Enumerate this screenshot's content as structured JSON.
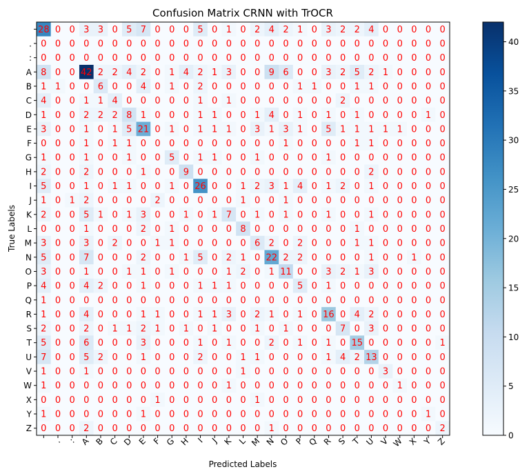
{
  "chart_data": {
    "type": "heatmap",
    "title": "Confusion Matrix CRNN with TrOCR",
    "xlabel": "Predicted Labels",
    "ylabel": "True Labels",
    "x_categories": [
      "",
      ".",
      ":",
      "A",
      "B",
      "C",
      "D",
      "E",
      "F",
      "G",
      "H",
      "I",
      "J",
      "K",
      "L",
      "M",
      "N",
      "O",
      "P",
      "Q",
      "R",
      "S",
      "T",
      "U",
      "V",
      "W",
      "X",
      "Y",
      "Z"
    ],
    "y_categories": [
      "",
      ".",
      ":",
      "A",
      "B",
      "C",
      "D",
      "E",
      "F",
      "G",
      "H",
      "I",
      "J",
      "K",
      "L",
      "M",
      "N",
      "O",
      "P",
      "Q",
      "R",
      "S",
      "T",
      "U",
      "V",
      "W",
      "X",
      "Y",
      "Z"
    ],
    "values": [
      [
        28,
        0,
        0,
        3,
        3,
        0,
        5,
        7,
        0,
        0,
        0,
        5,
        0,
        1,
        0,
        2,
        4,
        2,
        1,
        0,
        3,
        2,
        2,
        4,
        0,
        0,
        0,
        0,
        0
      ],
      [
        0,
        0,
        0,
        0,
        0,
        0,
        0,
        0,
        0,
        0,
        0,
        0,
        0,
        0,
        0,
        0,
        0,
        0,
        0,
        0,
        0,
        0,
        0,
        0,
        0,
        0,
        0,
        0,
        0
      ],
      [
        0,
        0,
        0,
        0,
        0,
        0,
        0,
        0,
        0,
        0,
        0,
        0,
        0,
        0,
        0,
        0,
        0,
        0,
        0,
        0,
        0,
        0,
        0,
        0,
        0,
        0,
        0,
        0,
        0
      ],
      [
        8,
        0,
        0,
        42,
        2,
        2,
        4,
        2,
        0,
        1,
        4,
        2,
        1,
        3,
        0,
        0,
        9,
        6,
        0,
        0,
        3,
        2,
        5,
        2,
        1,
        0,
        0,
        0,
        0
      ],
      [
        1,
        1,
        0,
        0,
        6,
        0,
        0,
        4,
        0,
        1,
        0,
        2,
        0,
        0,
        0,
        0,
        0,
        0,
        1,
        1,
        0,
        0,
        1,
        1,
        0,
        0,
        0,
        0,
        0
      ],
      [
        4,
        0,
        0,
        1,
        1,
        4,
        0,
        0,
        0,
        0,
        0,
        1,
        0,
        1,
        0,
        0,
        0,
        0,
        0,
        0,
        0,
        2,
        0,
        0,
        0,
        0,
        0,
        0,
        0
      ],
      [
        1,
        0,
        0,
        2,
        2,
        2,
        8,
        1,
        0,
        0,
        0,
        1,
        1,
        0,
        0,
        1,
        4,
        0,
        1,
        0,
        1,
        0,
        1,
        0,
        0,
        0,
        0,
        1,
        0
      ],
      [
        3,
        0,
        0,
        1,
        0,
        1,
        5,
        21,
        0,
        1,
        0,
        1,
        1,
        1,
        0,
        3,
        1,
        3,
        1,
        0,
        5,
        1,
        1,
        1,
        1,
        1,
        0,
        0,
        0
      ],
      [
        0,
        0,
        0,
        1,
        0,
        1,
        1,
        0,
        0,
        0,
        0,
        0,
        0,
        0,
        0,
        0,
        0,
        1,
        0,
        0,
        0,
        0,
        1,
        1,
        0,
        0,
        0,
        0,
        0
      ],
      [
        1,
        0,
        0,
        1,
        0,
        0,
        1,
        0,
        0,
        5,
        0,
        1,
        1,
        0,
        0,
        1,
        0,
        0,
        0,
        0,
        1,
        0,
        0,
        0,
        0,
        0,
        0,
        0,
        0
      ],
      [
        2,
        0,
        0,
        2,
        0,
        0,
        0,
        1,
        0,
        0,
        9,
        0,
        0,
        0,
        0,
        0,
        0,
        0,
        0,
        0,
        0,
        0,
        0,
        2,
        0,
        0,
        0,
        0,
        0
      ],
      [
        5,
        0,
        0,
        1,
        0,
        1,
        1,
        0,
        0,
        1,
        0,
        26,
        0,
        0,
        1,
        2,
        3,
        1,
        4,
        0,
        1,
        2,
        0,
        1,
        0,
        0,
        0,
        0,
        0
      ],
      [
        1,
        0,
        1,
        2,
        0,
        0,
        0,
        0,
        2,
        0,
        0,
        0,
        0,
        0,
        1,
        0,
        0,
        1,
        0,
        0,
        0,
        0,
        0,
        0,
        0,
        0,
        0,
        0,
        0
      ],
      [
        2,
        0,
        0,
        5,
        1,
        0,
        1,
        3,
        0,
        0,
        1,
        0,
        1,
        7,
        0,
        1,
        0,
        1,
        0,
        0,
        1,
        0,
        0,
        1,
        0,
        0,
        0,
        0,
        0
      ],
      [
        0,
        0,
        0,
        1,
        0,
        0,
        0,
        2,
        0,
        1,
        0,
        0,
        0,
        0,
        8,
        0,
        0,
        0,
        0,
        0,
        0,
        0,
        1,
        0,
        0,
        0,
        0,
        0,
        0
      ],
      [
        3,
        0,
        0,
        3,
        0,
        2,
        0,
        0,
        1,
        1,
        0,
        0,
        0,
        0,
        0,
        6,
        2,
        0,
        2,
        0,
        0,
        0,
        1,
        1,
        0,
        0,
        0,
        0,
        0
      ],
      [
        5,
        0,
        0,
        7,
        0,
        0,
        0,
        2,
        0,
        0,
        1,
        5,
        0,
        2,
        1,
        0,
        22,
        2,
        2,
        0,
        0,
        0,
        0,
        1,
        0,
        0,
        1,
        0,
        0
      ],
      [
        3,
        0,
        0,
        1,
        0,
        0,
        1,
        1,
        0,
        1,
        0,
        0,
        0,
        1,
        2,
        0,
        1,
        11,
        0,
        0,
        3,
        2,
        1,
        3,
        0,
        0,
        0,
        0,
        0
      ],
      [
        4,
        0,
        0,
        4,
        2,
        0,
        0,
        1,
        0,
        0,
        0,
        1,
        1,
        1,
        0,
        0,
        0,
        0,
        5,
        0,
        1,
        0,
        0,
        0,
        0,
        0,
        0,
        0,
        0
      ],
      [
        1,
        0,
        0,
        0,
        0,
        0,
        0,
        0,
        0,
        0,
        0,
        0,
        0,
        0,
        0,
        0,
        0,
        0,
        0,
        0,
        0,
        0,
        0,
        0,
        0,
        0,
        0,
        0,
        0
      ],
      [
        1,
        0,
        0,
        4,
        0,
        0,
        0,
        1,
        1,
        0,
        0,
        1,
        1,
        3,
        0,
        2,
        1,
        0,
        1,
        0,
        16,
        0,
        4,
        2,
        0,
        0,
        0,
        0,
        0
      ],
      [
        2,
        0,
        0,
        2,
        0,
        1,
        1,
        2,
        1,
        0,
        1,
        0,
        1,
        0,
        0,
        1,
        0,
        1,
        0,
        0,
        0,
        7,
        0,
        3,
        0,
        0,
        0,
        0,
        0
      ],
      [
        5,
        0,
        0,
        6,
        0,
        0,
        0,
        3,
        0,
        0,
        0,
        1,
        0,
        1,
        0,
        0,
        2,
        0,
        1,
        0,
        1,
        0,
        15,
        0,
        0,
        0,
        0,
        0,
        1
      ],
      [
        7,
        0,
        0,
        5,
        2,
        0,
        0,
        1,
        0,
        0,
        0,
        2,
        0,
        0,
        1,
        1,
        0,
        0,
        0,
        0,
        1,
        4,
        2,
        13,
        0,
        0,
        0,
        0,
        0
      ],
      [
        1,
        0,
        0,
        1,
        0,
        0,
        0,
        0,
        0,
        0,
        0,
        0,
        0,
        0,
        1,
        0,
        0,
        0,
        0,
        0,
        0,
        0,
        0,
        0,
        3,
        0,
        0,
        0,
        0
      ],
      [
        1,
        0,
        0,
        0,
        0,
        0,
        0,
        0,
        0,
        0,
        0,
        0,
        0,
        1,
        0,
        0,
        0,
        0,
        0,
        0,
        0,
        0,
        0,
        0,
        0,
        1,
        0,
        0,
        0
      ],
      [
        0,
        0,
        0,
        0,
        0,
        0,
        0,
        0,
        1,
        0,
        0,
        0,
        0,
        0,
        0,
        1,
        0,
        0,
        0,
        0,
        0,
        0,
        0,
        0,
        0,
        0,
        0,
        0,
        0
      ],
      [
        1,
        0,
        0,
        0,
        0,
        0,
        0,
        1,
        0,
        0,
        0,
        0,
        0,
        0,
        0,
        0,
        0,
        0,
        0,
        0,
        0,
        0,
        0,
        0,
        0,
        0,
        0,
        1,
        0
      ],
      [
        0,
        0,
        0,
        2,
        0,
        0,
        0,
        0,
        0,
        0,
        0,
        0,
        0,
        0,
        0,
        0,
        1,
        0,
        0,
        0,
        0,
        0,
        0,
        0,
        0,
        0,
        0,
        0,
        2
      ]
    ],
    "value_range": [
      0,
      42
    ],
    "colorbar_ticks": [
      0,
      5,
      10,
      15,
      20,
      25,
      30,
      35,
      40
    ],
    "colormap": "Blues",
    "annotation_color": "#ff0000"
  }
}
